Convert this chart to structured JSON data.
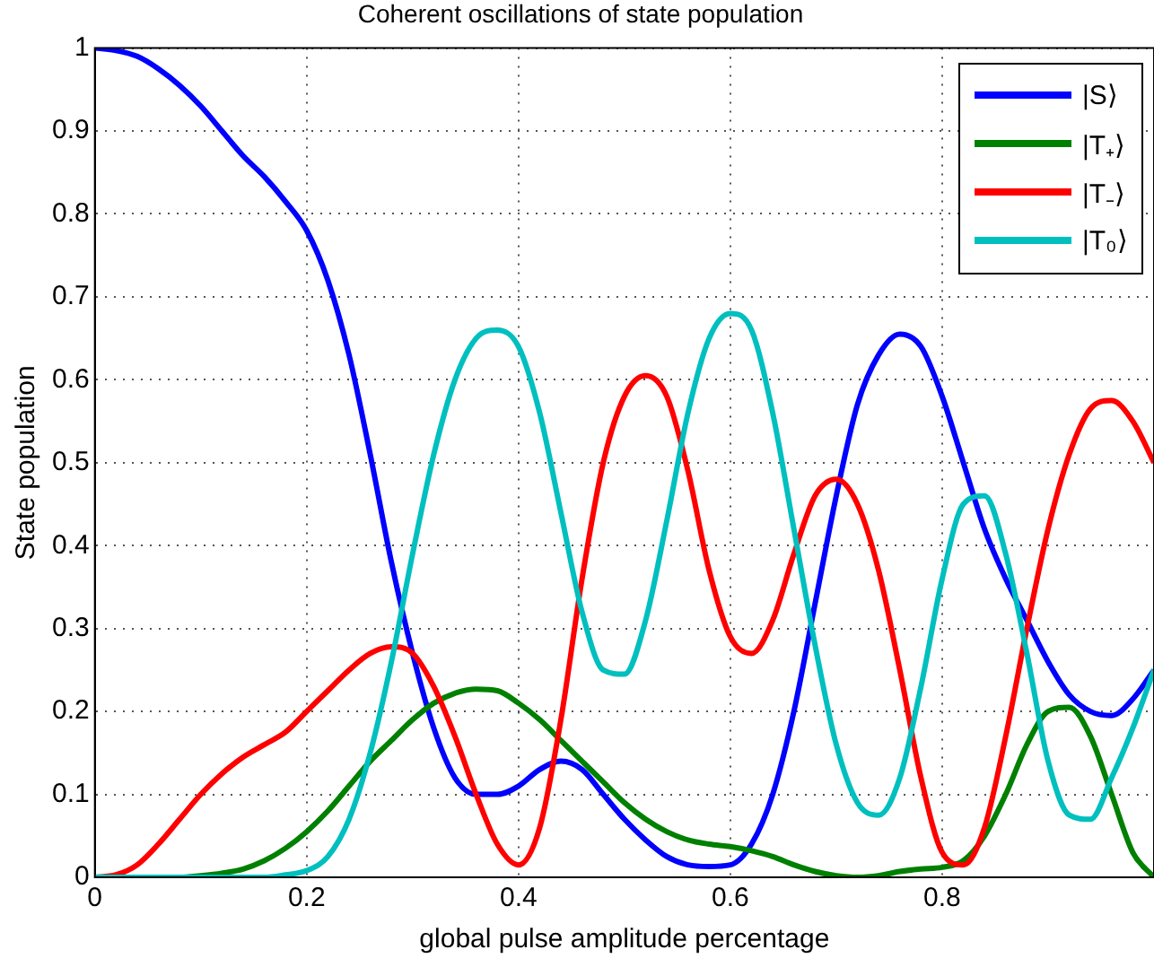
{
  "chart_data": {
    "type": "line",
    "title": "Coherent oscillations of state population",
    "xlabel": "global pulse amplitude percentage",
    "ylabel": "State population",
    "x": [
      0,
      0.02,
      0.04,
      0.06,
      0.08,
      0.1,
      0.12,
      0.14,
      0.16,
      0.18,
      0.2,
      0.22,
      0.24,
      0.26,
      0.28,
      0.3,
      0.32,
      0.34,
      0.36,
      0.38,
      0.4,
      0.42,
      0.44,
      0.46,
      0.48,
      0.5,
      0.52,
      0.54,
      0.56,
      0.58,
      0.6,
      0.62,
      0.64,
      0.66,
      0.68,
      0.7,
      0.72,
      0.74,
      0.76,
      0.78,
      0.8,
      0.82,
      0.84,
      0.86,
      0.88,
      0.9,
      0.92,
      0.94,
      0.96,
      0.98,
      1
    ],
    "series": [
      {
        "name": "|S⟩",
        "color": "#0000ff",
        "values": [
          1,
          0.997,
          0.99,
          0.975,
          0.955,
          0.93,
          0.9,
          0.87,
          0.845,
          0.815,
          0.78,
          0.72,
          0.63,
          0.51,
          0.38,
          0.27,
          0.18,
          0.12,
          0.1,
          0.1,
          0.11,
          0.13,
          0.14,
          0.13,
          0.1,
          0.07,
          0.045,
          0.025,
          0.015,
          0.013,
          0.015,
          0.04,
          0.1,
          0.2,
          0.33,
          0.46,
          0.57,
          0.63,
          0.655,
          0.64,
          0.58,
          0.5,
          0.42,
          0.36,
          0.31,
          0.26,
          0.22,
          0.2,
          0.195,
          0.215,
          0.25
        ]
      },
      {
        "name": "|T₊⟩",
        "color": "#008000",
        "values": [
          null,
          null,
          null,
          0,
          0,
          0.002,
          0.005,
          0.01,
          0.02,
          0.035,
          0.055,
          0.08,
          0.11,
          0.14,
          0.165,
          0.19,
          0.21,
          0.222,
          0.227,
          0.225,
          0.21,
          0.19,
          0.165,
          0.14,
          0.115,
          0.09,
          0.07,
          0.055,
          0.045,
          0.04,
          0.037,
          0.032,
          0.025,
          0.015,
          0.007,
          0.002,
          0,
          0.002,
          0.007,
          0.01,
          0.012,
          0.02,
          0.05,
          0.1,
          0.16,
          0.2,
          0.205,
          0.17,
          0.1,
          0.03,
          0
        ]
      },
      {
        "name": "|T₋⟩",
        "color": "#ff0000",
        "values": [
          0,
          0.003,
          0.015,
          0.04,
          0.07,
          0.1,
          0.125,
          0.145,
          0.16,
          0.175,
          0.2,
          0.225,
          0.25,
          0.27,
          0.278,
          0.27,
          0.23,
          0.17,
          0.1,
          0.04,
          0.015,
          0.06,
          0.19,
          0.36,
          0.5,
          0.58,
          0.605,
          0.58,
          0.49,
          0.37,
          0.29,
          0.27,
          0.31,
          0.39,
          0.46,
          0.48,
          0.45,
          0.37,
          0.25,
          0.12,
          0.03,
          0.015,
          0.06,
          0.17,
          0.3,
          0.42,
          0.51,
          0.565,
          0.575,
          0.55,
          0.5
        ]
      },
      {
        "name": "|T₀⟩",
        "color": "#00bfbf",
        "values": [
          0,
          0,
          0,
          0,
          0,
          0,
          0,
          0,
          0,
          0.003,
          0.008,
          0.025,
          0.07,
          0.15,
          0.26,
          0.39,
          0.51,
          0.6,
          0.65,
          0.66,
          0.64,
          0.56,
          0.44,
          0.32,
          0.25,
          0.245,
          0.31,
          0.43,
          0.56,
          0.65,
          0.68,
          0.66,
          0.56,
          0.42,
          0.28,
          0.16,
          0.09,
          0.075,
          0.12,
          0.23,
          0.36,
          0.45,
          0.46,
          0.39,
          0.27,
          0.14,
          0.075,
          0.07,
          0.12,
          0.18,
          0.25
        ]
      }
    ],
    "xlim": [
      0,
      1
    ],
    "xticks": [
      0,
      0.2,
      0.4,
      0.6,
      0.8
    ],
    "ylim": [
      0,
      1
    ],
    "yticks": [
      0,
      0.1,
      0.2,
      0.3,
      0.4,
      0.5,
      0.6,
      0.7,
      0.8,
      0.9,
      1
    ],
    "grid": true,
    "legend": "top right",
    "marker": "none",
    "line_style": "solid"
  }
}
